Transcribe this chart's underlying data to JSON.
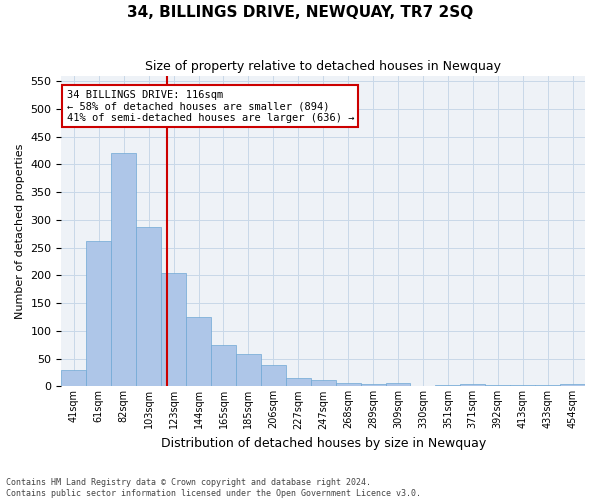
{
  "title": "34, BILLINGS DRIVE, NEWQUAY, TR7 2SQ",
  "subtitle": "Size of property relative to detached houses in Newquay",
  "xlabel": "Distribution of detached houses by size in Newquay",
  "ylabel": "Number of detached properties",
  "categories": [
    "41sqm",
    "61sqm",
    "82sqm",
    "103sqm",
    "123sqm",
    "144sqm",
    "165sqm",
    "185sqm",
    "206sqm",
    "227sqm",
    "247sqm",
    "268sqm",
    "289sqm",
    "309sqm",
    "330sqm",
    "351sqm",
    "371sqm",
    "392sqm",
    "413sqm",
    "433sqm",
    "454sqm"
  ],
  "values": [
    30,
    262,
    420,
    288,
    205,
    125,
    75,
    58,
    38,
    15,
    12,
    7,
    5,
    6,
    1,
    2,
    5,
    3,
    3,
    3,
    5
  ],
  "bar_color": "#aec6e8",
  "bar_edge_color": "#6fa8d4",
  "vline_x": 3.75,
  "vline_color": "#cc0000",
  "annotation_line1": "34 BILLINGS DRIVE: 116sqm",
  "annotation_line2": "← 58% of detached houses are smaller (894)",
  "annotation_line3": "41% of semi-detached houses are larger (636) →",
  "annotation_box_color": "#cc0000",
  "ylim": [
    0,
    560
  ],
  "yticks": [
    0,
    50,
    100,
    150,
    200,
    250,
    300,
    350,
    400,
    450,
    500,
    550
  ],
  "grid_color": "#c8d8e8",
  "bg_color": "#eef2f7",
  "footer_line1": "Contains HM Land Registry data © Crown copyright and database right 2024.",
  "footer_line2": "Contains public sector information licensed under the Open Government Licence v3.0."
}
